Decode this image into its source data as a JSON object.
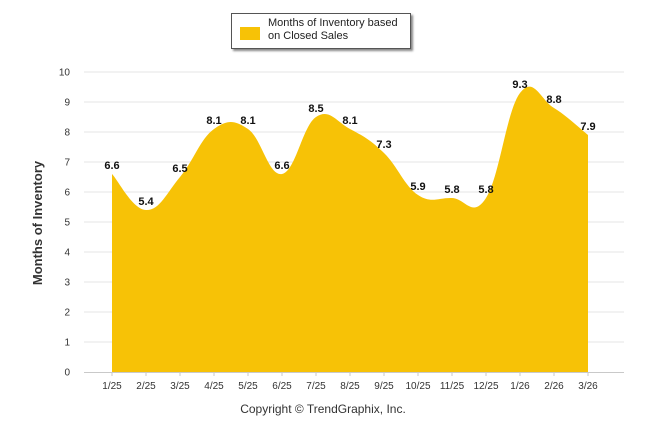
{
  "chart_data": {
    "type": "area",
    "title": "",
    "xlabel": "",
    "ylabel": "Months of Inventory",
    "ylim": [
      0,
      10
    ],
    "yticks": [
      "0",
      "1",
      "2",
      "3",
      "4",
      "5",
      "6",
      "7",
      "8",
      "9",
      "10"
    ],
    "grid": true,
    "legend_position": "top-center",
    "categories": [
      "1/25",
      "2/25",
      "3/25",
      "4/25",
      "5/25",
      "6/25",
      "7/25",
      "8/25",
      "9/25",
      "10/25",
      "11/25",
      "12/25",
      "1/26",
      "2/26",
      "3/26"
    ],
    "series": [
      {
        "name": "Months of Inventory based on Closed Sales",
        "color": "#F7C206",
        "values": [
          6.6,
          5.4,
          6.5,
          8.1,
          8.1,
          6.6,
          8.5,
          8.1,
          7.3,
          5.9,
          5.8,
          5.8,
          9.3,
          8.8,
          7.9
        ],
        "labels": [
          "6.6",
          "5.4",
          "6.5",
          "8.1",
          "8.1",
          "6.6",
          "8.5",
          "8.1",
          "7.3",
          "5.9",
          "5.8",
          "5.8",
          "9.3",
          "8.8",
          "7.9"
        ]
      }
    ]
  },
  "legend": {
    "label": "Months of Inventory based on Closed Sales"
  },
  "footer": {
    "credit": "Copyright © TrendGraphix, Inc."
  }
}
